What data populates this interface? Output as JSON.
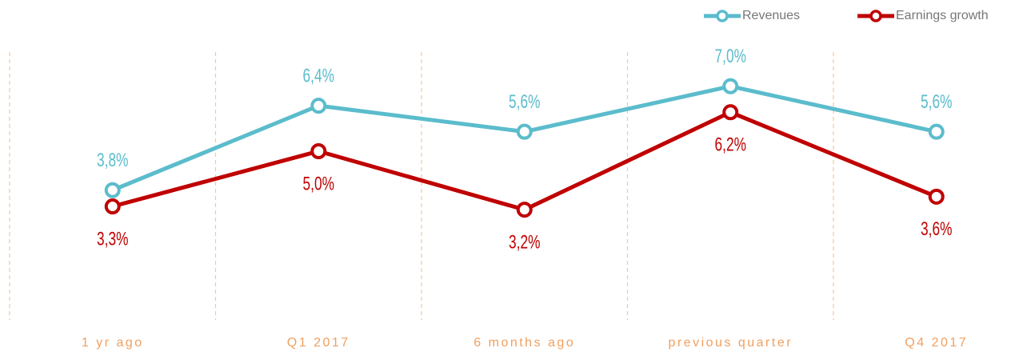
{
  "chart_data": {
    "type": "line",
    "categories": [
      "1 yr ago",
      "Q1 2017",
      "6 months ago",
      "previous quarter",
      "Q4 2017"
    ],
    "series": [
      {
        "name": "Revenues",
        "color": "#5bbccc",
        "values": [
          3.8,
          6.4,
          5.6,
          7.0,
          5.6
        ],
        "value_labels": [
          "3,8%",
          "6,4%",
          "5,6%",
          "7,0%",
          "5,6%"
        ]
      },
      {
        "name": "Earnings growth",
        "color": "#c00000",
        "values": [
          3.3,
          5.0,
          3.2,
          6.2,
          3.6
        ],
        "value_labels": [
          "3,3%",
          "5,0%",
          "3,2%",
          "6,2%",
          "3,6%"
        ]
      }
    ],
    "legend": "top-right"
  }
}
